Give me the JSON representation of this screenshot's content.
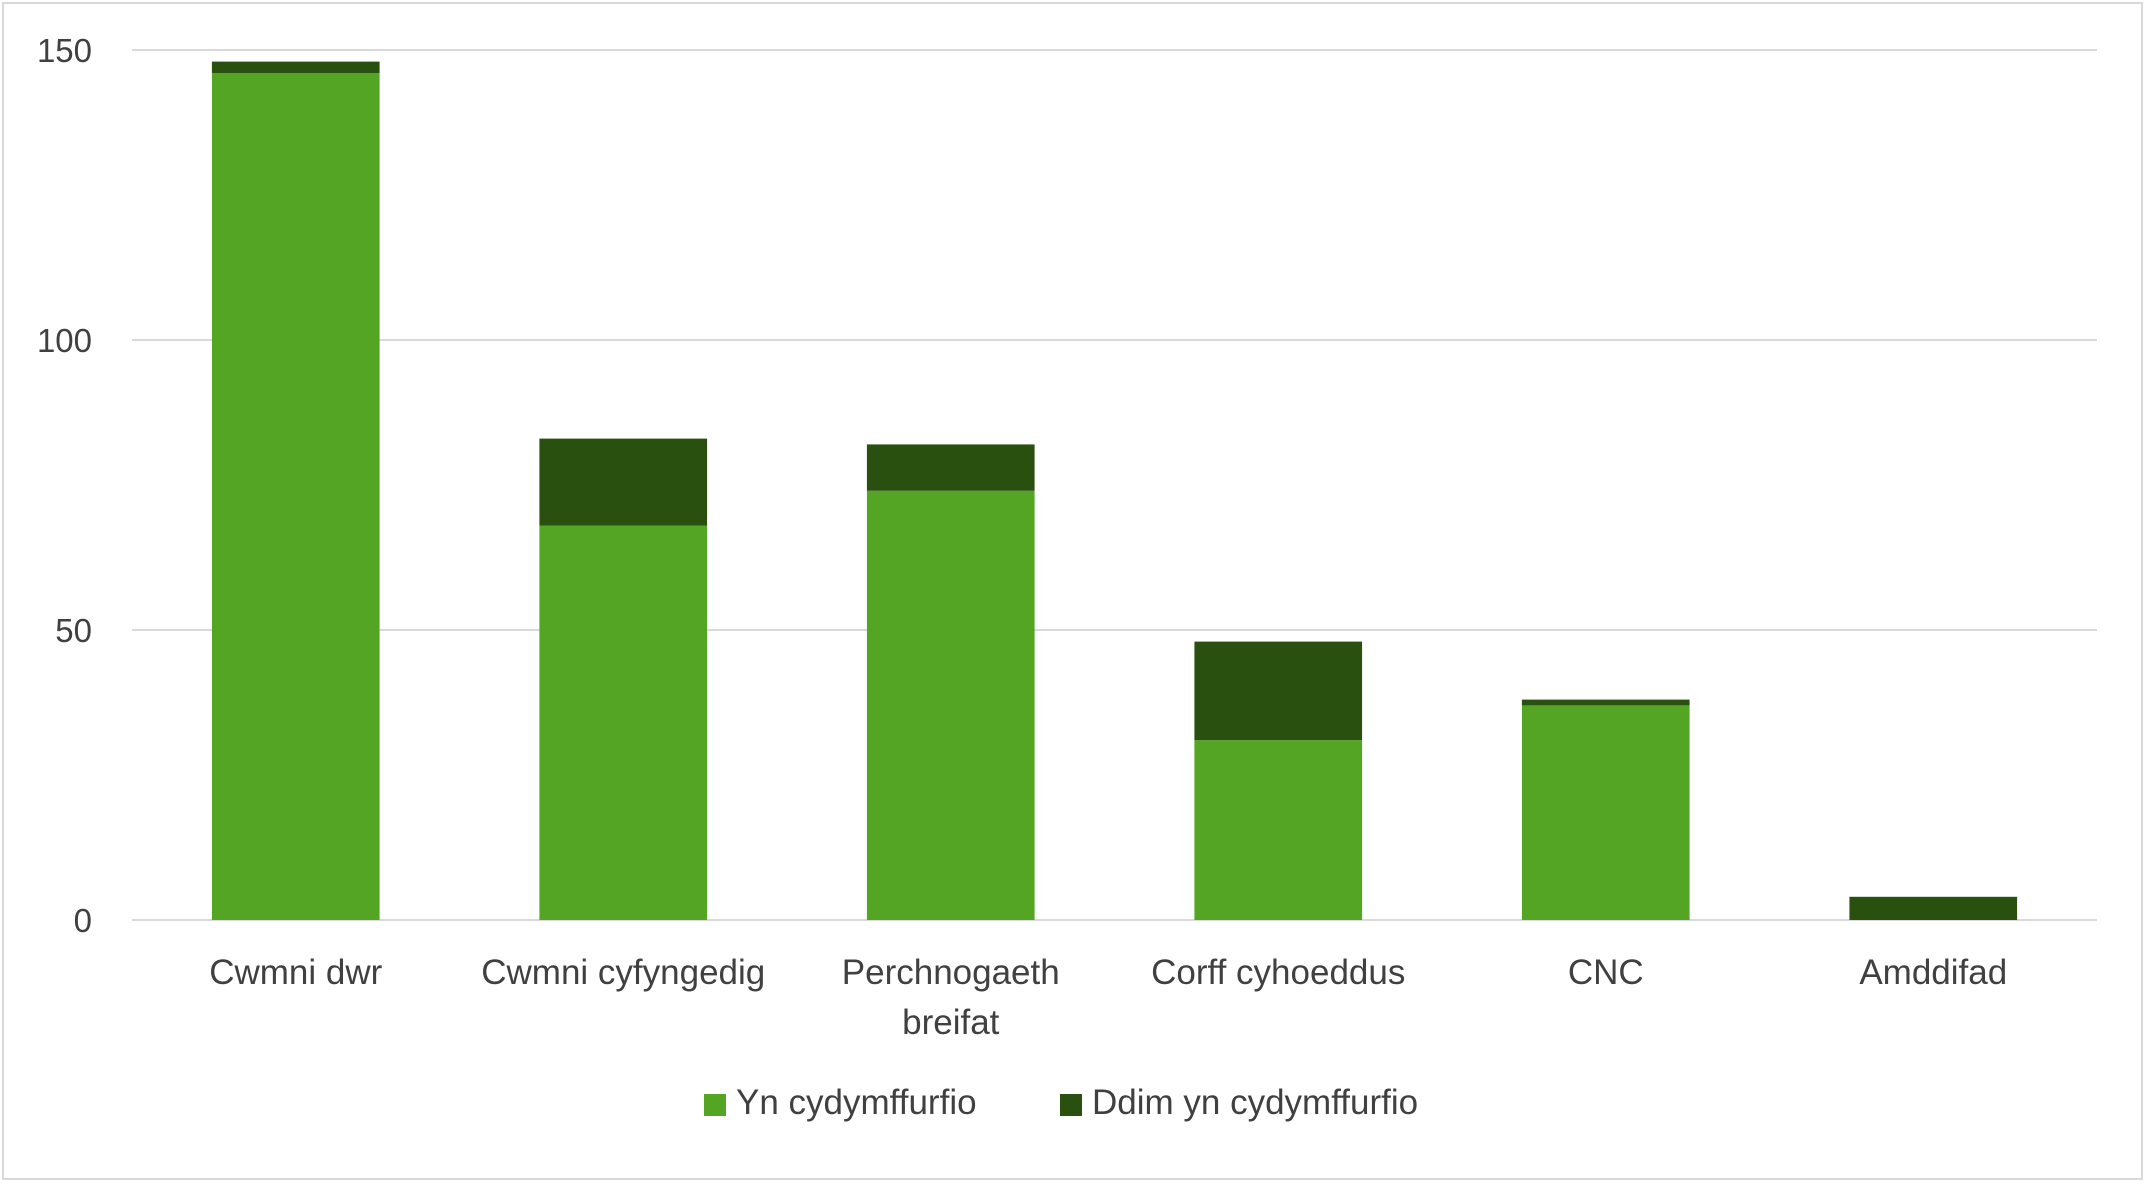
{
  "chart_data": {
    "type": "bar",
    "stacked": true,
    "categories": [
      [
        "Cwmni dwr"
      ],
      [
        "Cwmni cyfyngedig"
      ],
      [
        "Perchnogaeth",
        "breifat"
      ],
      [
        "Corff cyhoeddus"
      ],
      [
        "CNC"
      ],
      [
        "Amddifad"
      ]
    ],
    "series": [
      {
        "name": "Yn cydymffurfio",
        "color": "#55a524",
        "values": [
          146,
          68,
          74,
          31,
          37,
          0
        ]
      },
      {
        "name": "Ddim yn cydymffurfio",
        "color": "#2a5010",
        "values": [
          2,
          15,
          8,
          17,
          1,
          4
        ]
      }
    ],
    "ylim": [
      0,
      150
    ],
    "yticks": [
      0,
      50,
      100,
      150
    ],
    "grid": true,
    "legend_position": "bottom",
    "title": "",
    "xlabel": "",
    "ylabel": ""
  }
}
